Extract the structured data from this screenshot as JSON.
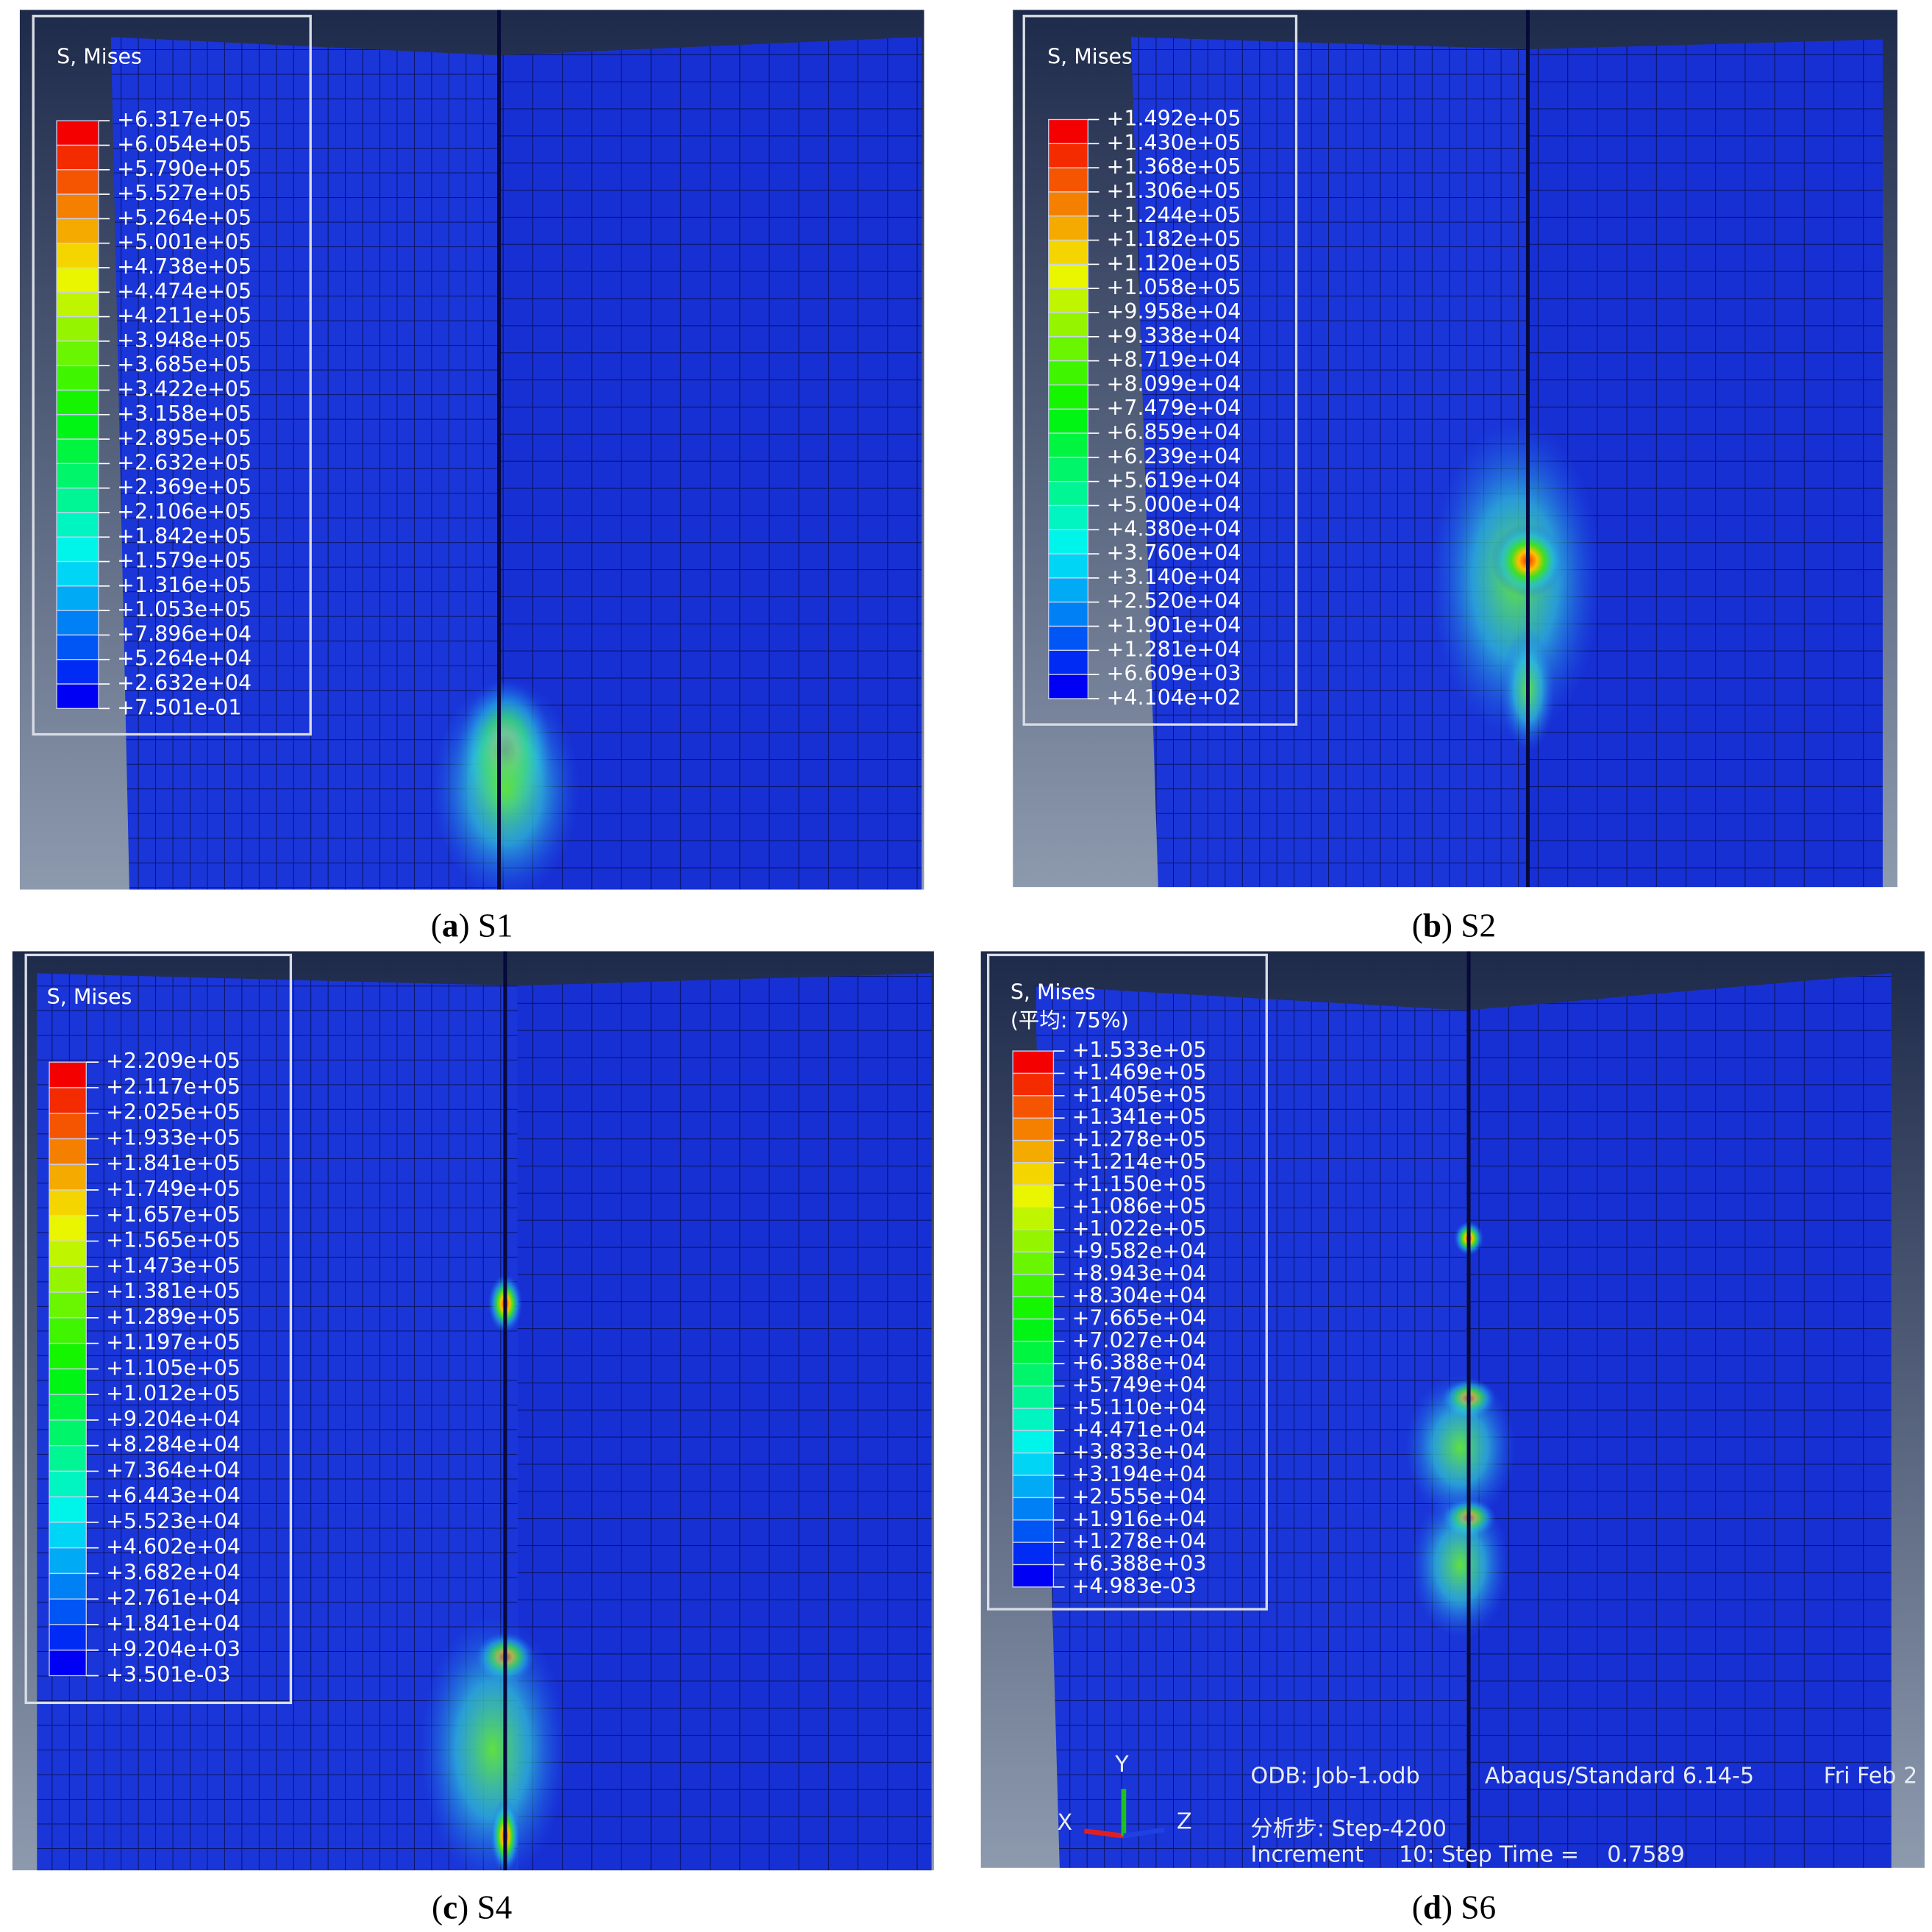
{
  "panels": [
    {
      "legend_title": "S, Mises",
      "legend_values": [
        "+6.317e+05",
        "+6.054e+05",
        "+5.790e+05",
        "+5.527e+05",
        "+5.264e+05",
        "+5.001e+05",
        "+4.738e+05",
        "+4.474e+05",
        "+4.211e+05",
        "+3.948e+05",
        "+3.685e+05",
        "+3.422e+05",
        "+3.158e+05",
        "+2.895e+05",
        "+2.632e+05",
        "+2.369e+05",
        "+2.106e+05",
        "+1.842e+05",
        "+1.579e+05",
        "+1.316e+05",
        "+1.053e+05",
        "+7.896e+04",
        "+5.264e+04",
        "+2.632e+04",
        "+7.501e-01"
      ],
      "caption": [
        "(",
        "a",
        ") S1"
      ]
    },
    {
      "legend_title": "S, Mises",
      "legend_values": [
        "+1.492e+05",
        "+1.430e+05",
        "+1.368e+05",
        "+1.306e+05",
        "+1.244e+05",
        "+1.182e+05",
        "+1.120e+05",
        "+1.058e+05",
        "+9.958e+04",
        "+9.338e+04",
        "+8.719e+04",
        "+8.099e+04",
        "+7.479e+04",
        "+6.859e+04",
        "+6.239e+04",
        "+5.619e+04",
        "+5.000e+04",
        "+4.380e+04",
        "+3.760e+04",
        "+3.140e+04",
        "+2.520e+04",
        "+1.901e+04",
        "+1.281e+04",
        "+6.609e+03",
        "+4.104e+02"
      ],
      "caption": [
        "(",
        "b",
        ") S2"
      ]
    },
    {
      "legend_title": "S, Mises",
      "legend_values": [
        "+2.209e+05",
        "+2.117e+05",
        "+2.025e+05",
        "+1.933e+05",
        "+1.841e+05",
        "+1.749e+05",
        "+1.657e+05",
        "+1.565e+05",
        "+1.473e+05",
        "+1.381e+05",
        "+1.289e+05",
        "+1.197e+05",
        "+1.105e+05",
        "+1.012e+05",
        "+9.204e+04",
        "+8.284e+04",
        "+7.364e+04",
        "+6.443e+04",
        "+5.523e+04",
        "+4.602e+04",
        "+3.682e+04",
        "+2.761e+04",
        "+1.841e+04",
        "+9.204e+03",
        "+3.501e-03"
      ],
      "caption": [
        "(",
        "c",
        ") S4"
      ]
    },
    {
      "legend_title": "S, Mises",
      "legend_subtitle": "(平均: 75%)",
      "legend_values": [
        "+1.533e+05",
        "+1.469e+05",
        "+1.405e+05",
        "+1.341e+05",
        "+1.278e+05",
        "+1.214e+05",
        "+1.150e+05",
        "+1.086e+05",
        "+1.022e+05",
        "+9.582e+04",
        "+8.943e+04",
        "+8.304e+04",
        "+7.665e+04",
        "+7.027e+04",
        "+6.388e+04",
        "+5.749e+04",
        "+5.110e+04",
        "+4.471e+04",
        "+3.833e+04",
        "+3.194e+04",
        "+2.555e+04",
        "+1.916e+04",
        "+1.278e+04",
        "+6.388e+03",
        "+4.983e-03"
      ],
      "caption": [
        "(",
        "d",
        ") S6"
      ],
      "info": [
        "ODB: Job-1.odb",
        "Abaqus/Standard 6.14-5",
        "Fri Feb 2",
        "分析步: Step-4200",
        "Increment     10: Step Time =    0.7589"
      ],
      "triad": [
        "X",
        "Y",
        "Z"
      ]
    }
  ]
}
